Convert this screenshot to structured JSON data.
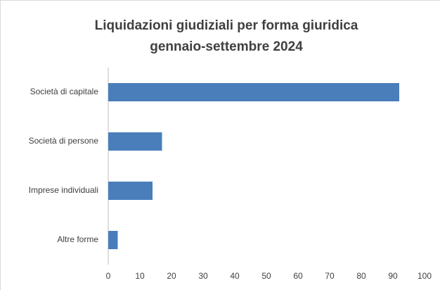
{
  "chart_data": {
    "type": "barh",
    "title": "Liquidazioni giudiziali per forma giuridica",
    "subtitle": "gennaio-settembre 2024",
    "categories": [
      "Società di capitale",
      "Società di persone",
      "Imprese individuali",
      "Altre forme"
    ],
    "values": [
      92,
      17,
      14,
      3
    ],
    "color": "#4a7ebb",
    "xlim": [
      0,
      100
    ],
    "xticks": [
      0,
      10,
      20,
      30,
      40,
      50,
      60,
      70,
      80,
      90,
      100
    ],
    "grid": false
  }
}
